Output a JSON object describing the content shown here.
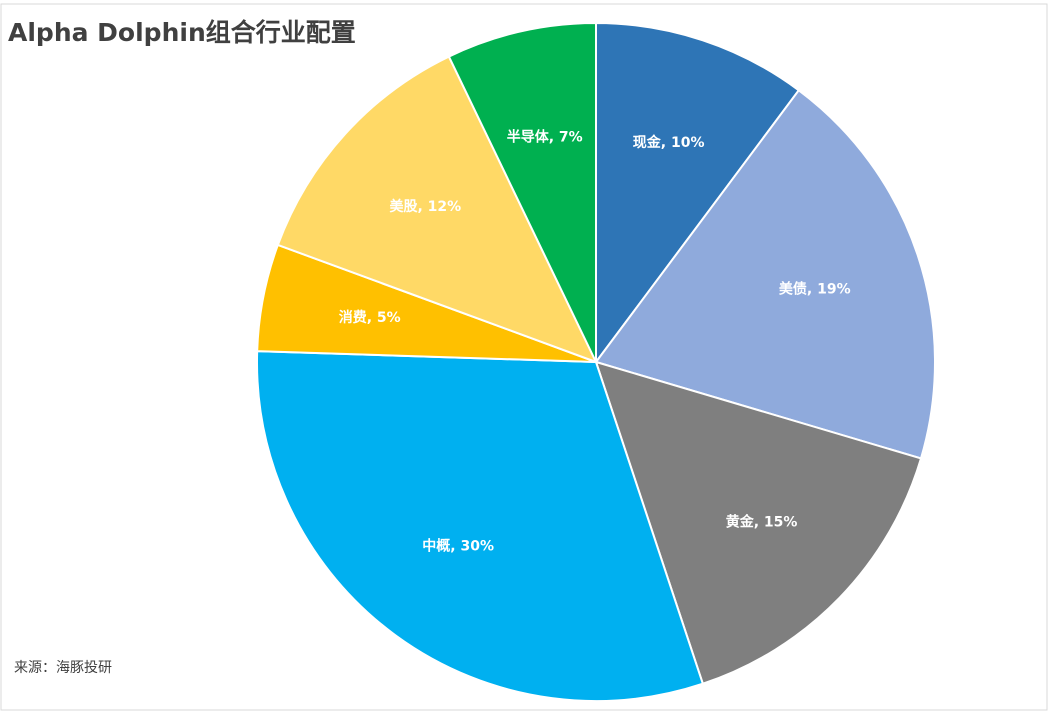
{
  "chart_data": {
    "type": "pie",
    "title": "Alpha Dolphin组合行业配置",
    "values": [
      10,
      19,
      15,
      30,
      5,
      12,
      7
    ],
    "value_labels": [
      "现金, 10%",
      "美债, 19%",
      "黄金, 15%",
      "中概, 30%",
      "消费, 5%",
      "美股, 12%",
      "半导体, 7%"
    ],
    "colors": [
      "#2e75b6",
      "#8faadc",
      "#7f7f7f",
      "#00b0f0",
      "#ffc000",
      "#ffd966",
      "#00b050"
    ],
    "source": "来源：海豚投研"
  }
}
